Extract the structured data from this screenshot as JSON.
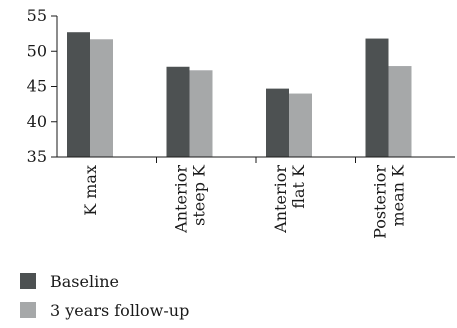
{
  "chart_data": {
    "type": "bar",
    "categories": [
      [
        "K max"
      ],
      [
        "Anterior",
        "steep K"
      ],
      [
        "Anterior",
        "flat K"
      ],
      [
        "Posterior",
        "mean K"
      ]
    ],
    "series": [
      {
        "name": "Baseline",
        "values": [
          52.7,
          47.8,
          44.7,
          51.8
        ],
        "color": "#4d5152"
      },
      {
        "name": "3 years follow-up",
        "values": [
          51.7,
          47.3,
          44.0,
          47.9
        ],
        "color": "#a6a8a9"
      }
    ],
    "ylim": [
      35,
      55
    ],
    "yticks": [
      35,
      40,
      45,
      50,
      55
    ],
    "grid": false,
    "legend_position": "bottom-left"
  }
}
